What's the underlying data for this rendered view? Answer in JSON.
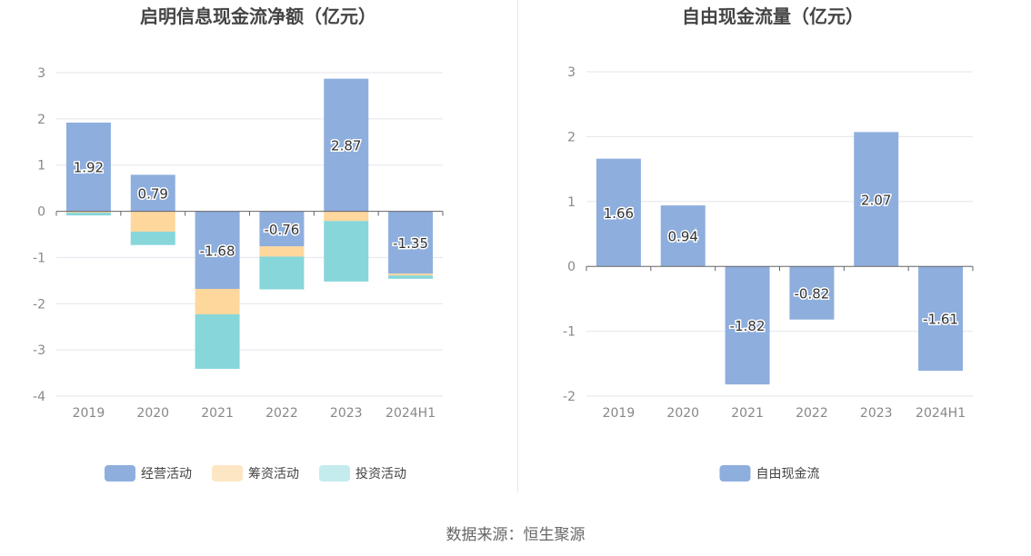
{
  "source_text": "数据来源：恒生聚源",
  "chart_data": [
    {
      "type": "bar",
      "stacked": true,
      "title": "启明信息现金流净额（亿元）",
      "categories": [
        "2019",
        "2020",
        "2021",
        "2022",
        "2023",
        "2024H1"
      ],
      "ylim": [
        -4,
        3
      ],
      "yticks": [
        "3",
        "2",
        "1",
        "0",
        "-1",
        "-2",
        "-3",
        "-4"
      ],
      "grid": true,
      "legend_position": "bottom",
      "series": [
        {
          "name": "经营活动",
          "color": "#8eaedd",
          "values": [
            1.92,
            0.79,
            -1.68,
            -0.76,
            2.87,
            -1.35
          ],
          "labels": [
            "1.92",
            "0.79",
            "-1.68",
            "-0.76",
            "2.87",
            "-1.35"
          ]
        },
        {
          "name": "筹资活动",
          "color": "#fdd79c",
          "values": [
            -0.03,
            -0.44,
            -0.55,
            -0.22,
            -0.21,
            -0.04
          ]
        },
        {
          "name": "投资活动",
          "color": "#86d6da",
          "values": [
            -0.06,
            -0.29,
            -1.18,
            -0.71,
            -1.31,
            -0.07
          ]
        }
      ],
      "legend_colors": [
        "#8eaedd",
        "#fde6c4",
        "#c4ecef"
      ]
    },
    {
      "type": "bar",
      "title": "自由现金流量（亿元）",
      "categories": [
        "2019",
        "2020",
        "2021",
        "2022",
        "2023",
        "2024H1"
      ],
      "ylim": [
        -2,
        3
      ],
      "yticks": [
        "3",
        "2",
        "1",
        "0",
        "-1",
        "-2"
      ],
      "grid": true,
      "legend_position": "bottom",
      "series": [
        {
          "name": "自由现金流",
          "color": "#8eaedd",
          "values": [
            1.66,
            0.94,
            -1.82,
            -0.82,
            2.07,
            -1.61
          ],
          "labels": [
            "1.66",
            "0.94",
            "-1.82",
            "-0.82",
            "2.07",
            "-1.61"
          ]
        }
      ],
      "legend_colors": [
        "#8eaedd"
      ]
    }
  ]
}
